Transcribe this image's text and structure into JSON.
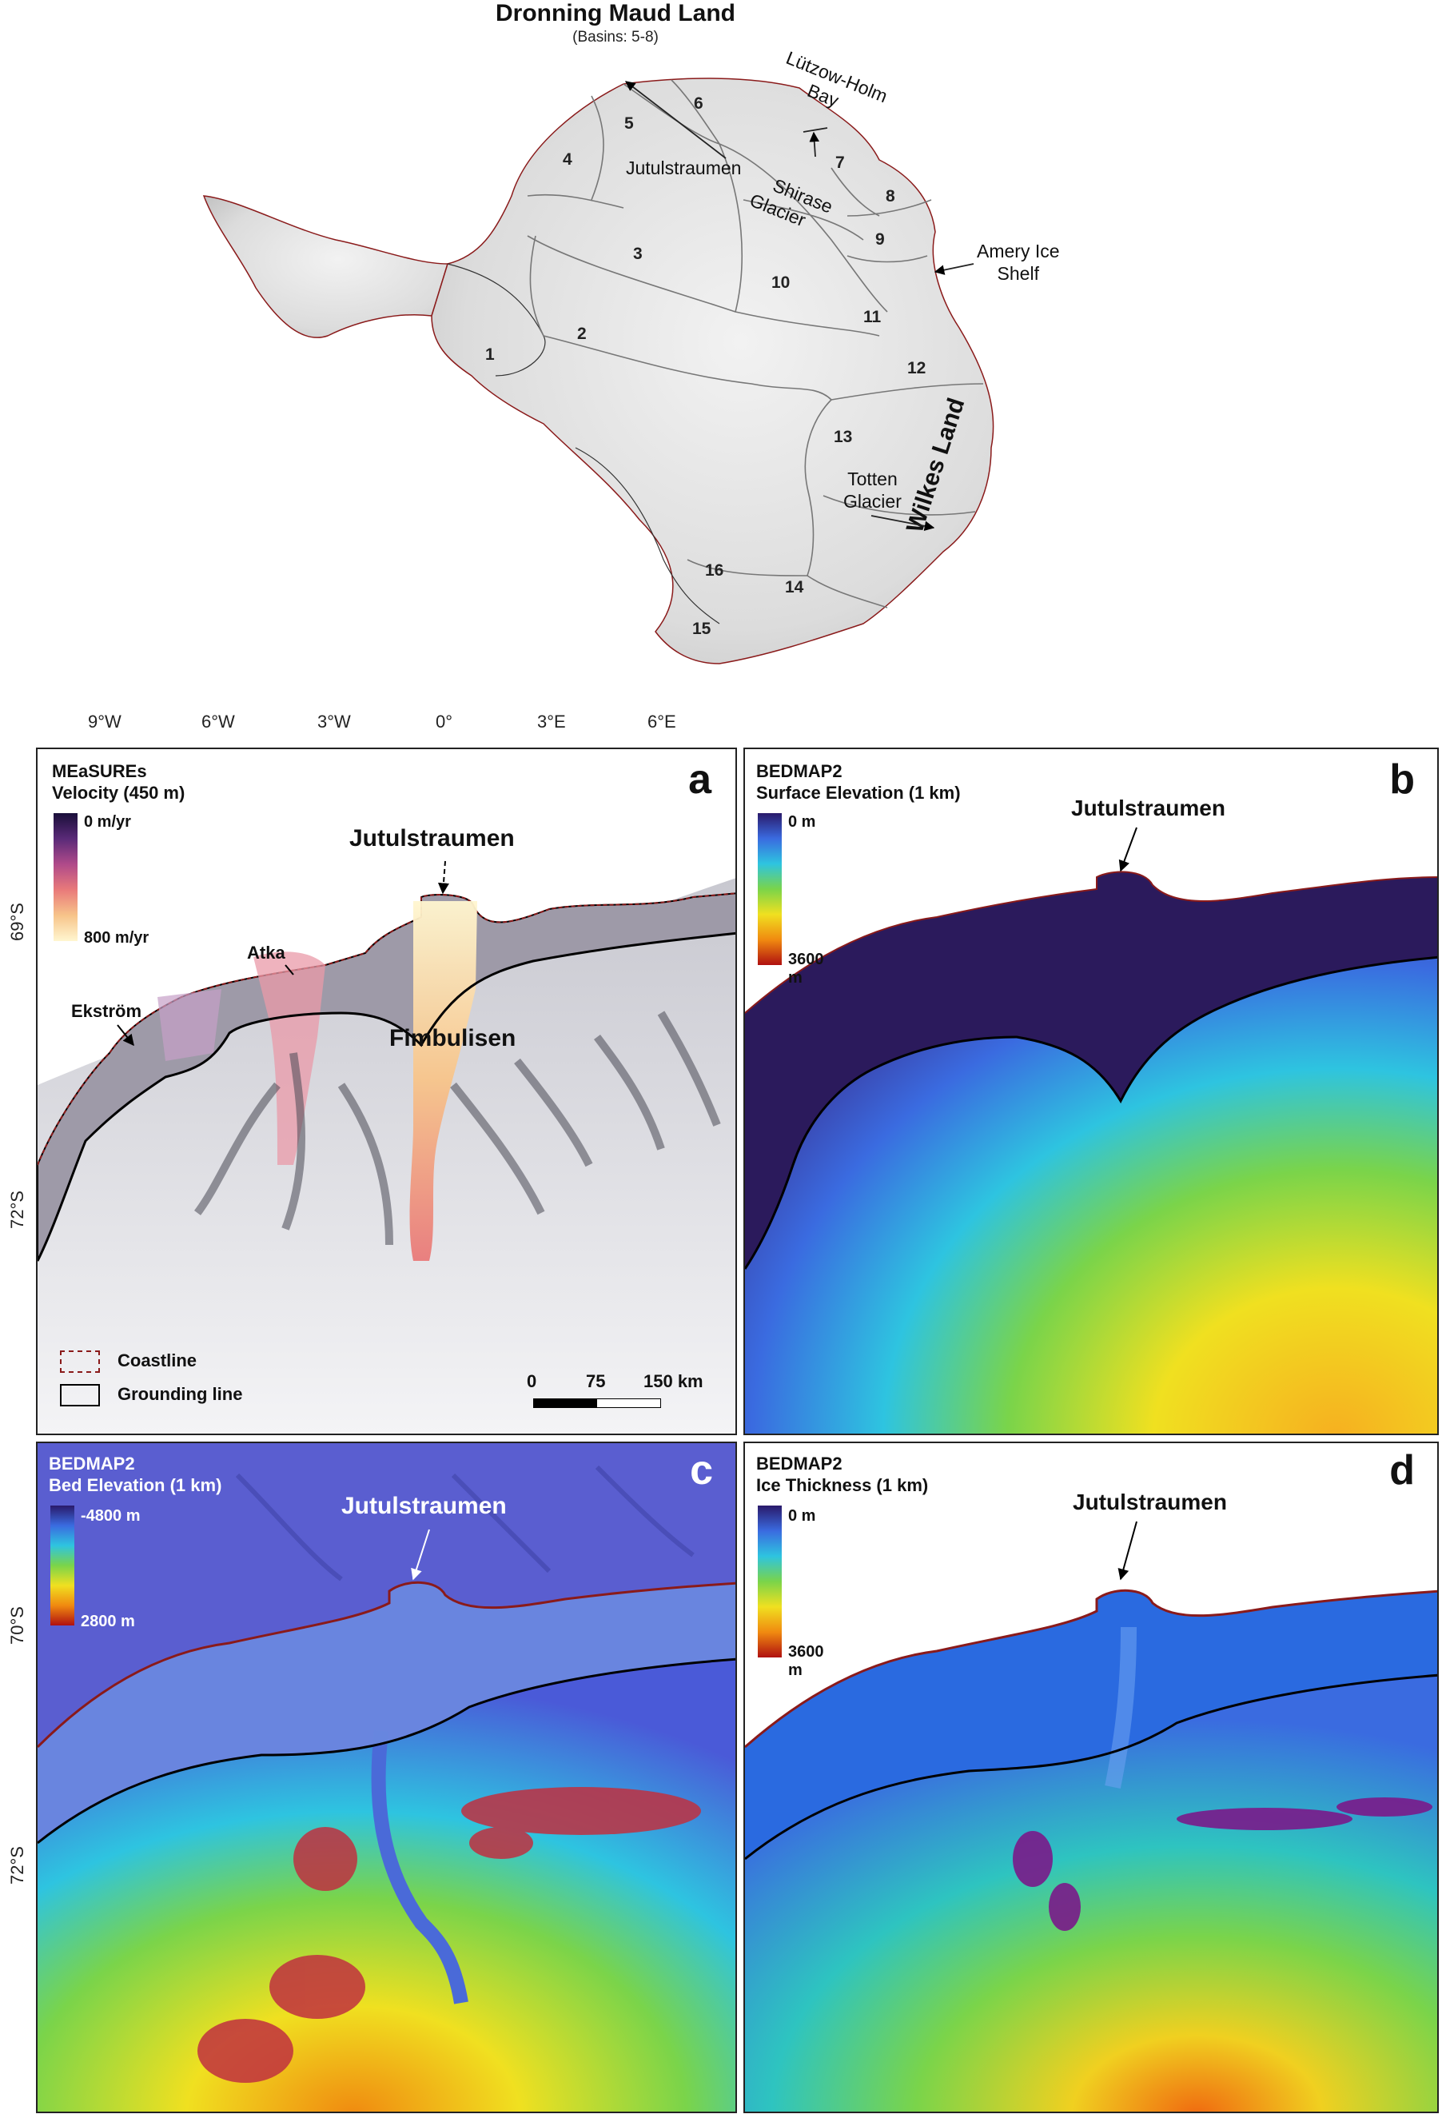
{
  "top_map": {
    "title": "Dronning Maud Land",
    "subtitle": "(Basins: 5-8)",
    "side_label": "Wilkes Land",
    "basins": [
      "1",
      "2",
      "3",
      "4",
      "5",
      "6",
      "7",
      "8",
      "9",
      "10",
      "11",
      "12",
      "13",
      "14",
      "15",
      "16"
    ],
    "places": {
      "lutzow_line1": "Lützow-Holm",
      "lutzow_line2": "Bay",
      "jutulstraumen": "Jutulstraumen",
      "shirase_line1": "Shirase",
      "shirase_line2": "Glacier",
      "amery_line1": "Amery Ice",
      "amery_line2": "Shelf",
      "totten_line1": "Totten",
      "totten_line2": "Glacier"
    }
  },
  "axes": {
    "longitudes": [
      "9°W",
      "6°W",
      "3°W",
      "0°",
      "3°E",
      "6°E"
    ],
    "lat_a": [
      "69°S",
      "72°S"
    ],
    "lat_c": [
      "70°S",
      "72°S"
    ]
  },
  "panel_a": {
    "letter": "a",
    "title_line1": "MEaSUREs",
    "title_line2": "Velocity (450 m)",
    "cb_min": "0 m/yr",
    "cb_max": "800 m/yr",
    "label_jutulstraumen": "Jutulstraumen",
    "label_atka": "Atka",
    "label_ekstrom": "Ekström",
    "label_fimbulisen": "Fimbulisen",
    "legend_coastline": "Coastline",
    "legend_grounding": "Grounding line",
    "scale_ticks": [
      "0",
      "75",
      "150 km"
    ]
  },
  "panel_b": {
    "letter": "b",
    "title_line1": "BEDMAP2",
    "title_line2": "Surface Elevation (1 km)",
    "cb_min": "0 m",
    "cb_max_line1": "3600",
    "cb_max_line2": "m",
    "label_jutulstraumen": "Jutulstraumen"
  },
  "panel_c": {
    "letter": "c",
    "title_line1": "BEDMAP2",
    "title_line2": "Bed Elevation (1 km)",
    "cb_min": "-4800 m",
    "cb_max": "2800 m",
    "label_jutulstraumen": "Jutulstraumen"
  },
  "panel_d": {
    "letter": "d",
    "title_line1": "BEDMAP2",
    "title_line2": "Ice Thickness (1 km)",
    "cb_min": "0 m",
    "cb_max_line1": "3600",
    "cb_max_line2": "m",
    "label_jutulstraumen": "Jutulstraumen"
  },
  "colors": {
    "velocity_ramp": [
      "#1a0f3a",
      "#5a2a78",
      "#b04a8a",
      "#e97a7a",
      "#f7c48a",
      "#fff6d0"
    ],
    "elevation_ramp": [
      "#2a1a6a",
      "#3a6be0",
      "#2ec4e0",
      "#7ad44a",
      "#f0e020",
      "#f08a10",
      "#b01010"
    ],
    "coastline": "#8a1a1a",
    "grounding": "#000000"
  }
}
